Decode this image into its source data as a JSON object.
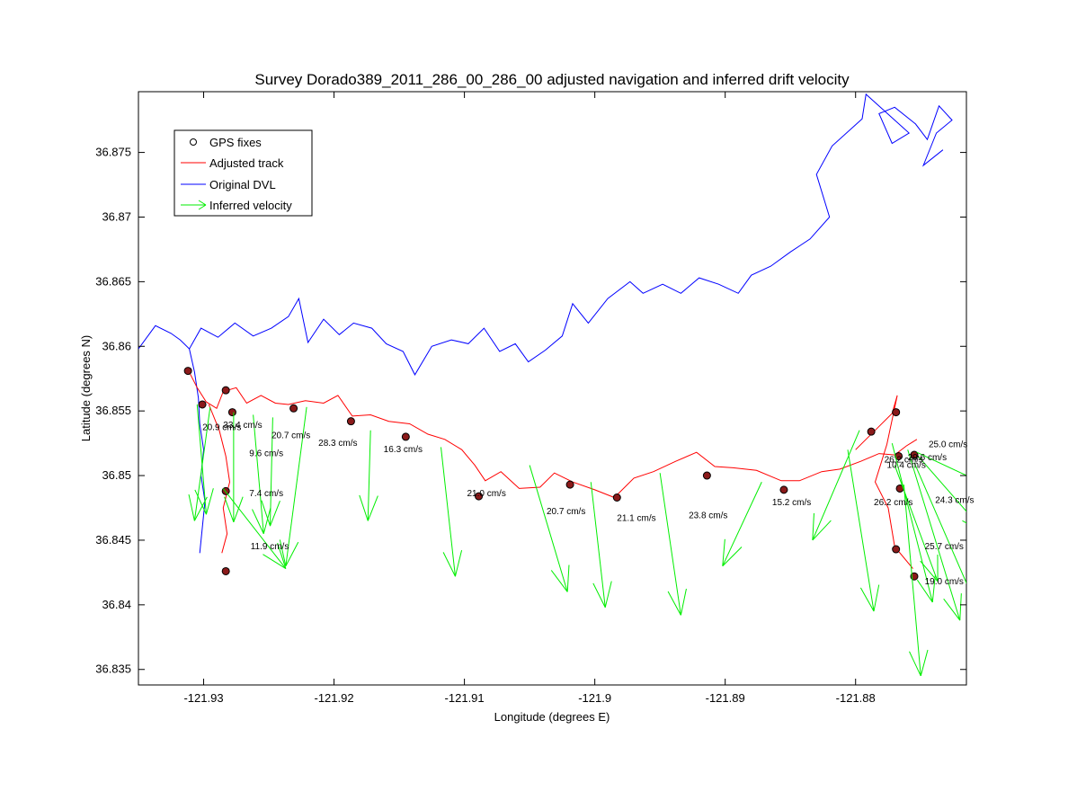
{
  "chart_data": {
    "type": "line",
    "title": "Survey Dorado389_2011_286_00_286_00 adjusted navigation and inferred drift velocity",
    "xlabel": "Longitude (degrees E)",
    "ylabel": "Latitude (degrees N)",
    "xlim": [
      -121.935,
      -121.8715
    ],
    "ylim": [
      36.8338,
      36.8797
    ],
    "xticks": [
      -121.93,
      -121.92,
      -121.91,
      -121.9,
      -121.89,
      -121.88
    ],
    "xtick_labels": [
      "-121.93",
      "-121.92",
      "-121.91",
      "-121.9",
      "-121.89",
      "-121.88"
    ],
    "yticks": [
      36.835,
      36.84,
      36.845,
      36.85,
      36.855,
      36.86,
      36.865,
      36.87,
      36.875
    ],
    "ytick_labels": [
      "36.835",
      "36.84",
      "36.845",
      "36.85",
      "36.855",
      "36.86",
      "36.865",
      "36.87",
      "36.875"
    ],
    "grid": false,
    "legend_position": "top-left",
    "legend": [
      {
        "label": "GPS fixes",
        "style": "circle",
        "color": "#000000"
      },
      {
        "label": "Adjusted track",
        "style": "line",
        "color": "#ff0000"
      },
      {
        "label": "Original DVL",
        "style": "line",
        "color": "#0000ff"
      },
      {
        "label": "Inferred velocity",
        "style": "arrow",
        "color": "#00ee00"
      }
    ],
    "series": [
      {
        "name": "Original DVL",
        "color": "#0000ff",
        "points": [
          [
            -121.935,
            36.8598
          ],
          [
            -121.9337,
            36.8616
          ],
          [
            -121.9325,
            36.861
          ],
          [
            -121.9318,
            36.8605
          ],
          [
            -121.9311,
            36.8598
          ],
          [
            -121.9302,
            36.8614
          ],
          [
            -121.9289,
            36.8607
          ],
          [
            -121.9276,
            36.8618
          ],
          [
            -121.9262,
            36.8608
          ],
          [
            -121.9248,
            36.8614
          ],
          [
            -121.9235,
            36.8623
          ],
          [
            -121.9227,
            36.8637
          ],
          [
            -121.922,
            36.8603
          ],
          [
            -121.9208,
            36.8621
          ],
          [
            -121.9196,
            36.8609
          ],
          [
            -121.9185,
            36.8618
          ],
          [
            -121.9171,
            36.8614
          ],
          [
            -121.916,
            36.8602
          ],
          [
            -121.9147,
            36.8596
          ],
          [
            -121.9138,
            36.8578
          ],
          [
            -121.9125,
            36.86
          ],
          [
            -121.911,
            36.8605
          ],
          [
            -121.9097,
            36.8602
          ],
          [
            -121.9085,
            36.8614
          ],
          [
            -121.9073,
            36.8596
          ],
          [
            -121.9061,
            36.8602
          ],
          [
            -121.9051,
            36.8588
          ],
          [
            -121.9038,
            36.8597
          ],
          [
            -121.9025,
            36.8608
          ],
          [
            -121.9017,
            36.8633
          ],
          [
            -121.9005,
            36.8618
          ],
          [
            -121.899,
            36.8637
          ],
          [
            -121.8973,
            36.865
          ],
          [
            -121.8963,
            36.8641
          ],
          [
            -121.8948,
            36.8648
          ],
          [
            -121.8934,
            36.8641
          ],
          [
            -121.892,
            36.8653
          ],
          [
            -121.8905,
            36.8648
          ],
          [
            -121.889,
            36.8641
          ],
          [
            -121.888,
            36.8655
          ],
          [
            -121.8865,
            36.8662
          ],
          [
            -121.885,
            36.8673
          ],
          [
            -121.8835,
            36.8683
          ],
          [
            -121.882,
            36.87
          ],
          [
            -121.883,
            36.8733
          ],
          [
            -121.8818,
            36.8755
          ],
          [
            -121.8795,
            36.8776
          ],
          [
            -121.8792,
            36.8795
          ],
          [
            -121.877,
            36.8775
          ],
          [
            -121.8759,
            36.8765
          ],
          [
            -121.8772,
            36.8757
          ],
          [
            -121.8782,
            36.878
          ],
          [
            -121.877,
            36.8785
          ],
          [
            -121.8754,
            36.8772
          ],
          [
            -121.8745,
            36.876
          ],
          [
            -121.8736,
            36.8786
          ],
          [
            -121.8726,
            36.8775
          ],
          [
            -121.8738,
            36.8765
          ],
          [
            -121.8748,
            36.874
          ],
          [
            -121.8733,
            36.8752
          ]
        ]
      },
      {
        "name": "Original DVL",
        "color": "#0000ff",
        "points": [
          [
            -121.9311,
            36.8598
          ],
          [
            -121.9307,
            36.858
          ],
          [
            -121.9304,
            36.856
          ],
          [
            -121.9303,
            36.854
          ],
          [
            -121.93,
            36.852
          ],
          [
            -121.9302,
            36.85
          ],
          [
            -121.9299,
            36.848
          ],
          [
            -121.9301,
            36.846
          ],
          [
            -121.9303,
            36.844
          ]
        ]
      },
      {
        "name": "Adjusted track",
        "color": "#ff0000",
        "points": [
          [
            -121.9312,
            36.8582
          ],
          [
            -121.9305,
            36.8568
          ],
          [
            -121.9298,
            36.8557
          ],
          [
            -121.929,
            36.8552
          ],
          [
            -121.9285,
            36.8565
          ],
          [
            -121.9275,
            36.8568
          ],
          [
            -121.9267,
            36.8556
          ],
          [
            -121.9256,
            36.8562
          ],
          [
            -121.9245,
            36.8556
          ],
          [
            -121.9235,
            36.8555
          ],
          [
            -121.9222,
            36.8558
          ],
          [
            -121.9208,
            36.8556
          ],
          [
            -121.9197,
            36.8562
          ],
          [
            -121.9186,
            36.8546
          ],
          [
            -121.9172,
            36.8547
          ],
          [
            -121.9158,
            36.8542
          ],
          [
            -121.9142,
            36.854
          ],
          [
            -121.9128,
            36.8532
          ],
          [
            -121.9115,
            36.8528
          ],
          [
            -121.9102,
            36.852
          ],
          [
            -121.9092,
            36.8508
          ],
          [
            -121.9084,
            36.8496
          ],
          [
            -121.9072,
            36.8503
          ],
          [
            -121.9058,
            36.849
          ],
          [
            -121.9042,
            36.8491
          ],
          [
            -121.9031,
            36.8502
          ],
          [
            -121.9017,
            36.8495
          ],
          [
            -121.9,
            36.8489
          ],
          [
            -121.8985,
            36.8483
          ],
          [
            -121.897,
            36.8498
          ],
          [
            -121.8955,
            36.8503
          ],
          [
            -121.8938,
            36.8511
          ],
          [
            -121.8922,
            36.8518
          ],
          [
            -121.8908,
            36.8507
          ],
          [
            -121.8894,
            36.8506
          ],
          [
            -121.8876,
            36.8504
          ],
          [
            -121.8857,
            36.8496
          ],
          [
            -121.8843,
            36.8496
          ],
          [
            -121.8826,
            36.8503
          ],
          [
            -121.8812,
            36.8505
          ],
          [
            -121.8796,
            36.8511
          ],
          [
            -121.8782,
            36.8517
          ],
          [
            -121.877,
            36.8516
          ],
          [
            -121.8761,
            36.8523
          ],
          [
            -121.8753,
            36.8528
          ]
        ]
      },
      {
        "name": "Adjusted track",
        "color": "#ff0000",
        "points": [
          [
            -121.9296,
            36.8555
          ],
          [
            -121.9288,
            36.8535
          ],
          [
            -121.9283,
            36.8515
          ],
          [
            -121.928,
            36.8495
          ],
          [
            -121.9285,
            36.8475
          ],
          [
            -121.9282,
            36.8455
          ],
          [
            -121.9286,
            36.844
          ]
        ]
      },
      {
        "name": "Adjusted track",
        "color": "#ff0000",
        "points": [
          [
            -121.88,
            36.852
          ],
          [
            -121.8785,
            36.8535
          ],
          [
            -121.8772,
            36.8548
          ],
          [
            -121.8768,
            36.8562
          ],
          [
            -121.8776,
            36.8524
          ],
          [
            -121.8785,
            36.8495
          ],
          [
            -121.8775,
            36.8475
          ],
          [
            -121.877,
            36.8445
          ],
          [
            -121.8756,
            36.8428
          ]
        ]
      }
    ],
    "gps_fixes": [
      [
        -121.9312,
        36.8581
      ],
      [
        -121.9301,
        36.8555
      ],
      [
        -121.9283,
        36.8566
      ],
      [
        -121.9278,
        36.8549
      ],
      [
        -121.9283,
        36.8488
      ],
      [
        -121.9283,
        36.8426
      ],
      [
        -121.9231,
        36.8552
      ],
      [
        -121.9187,
        36.8542
      ],
      [
        -121.9145,
        36.853
      ],
      [
        -121.9089,
        36.8484
      ],
      [
        -121.9019,
        36.8493
      ],
      [
        -121.8983,
        36.8483
      ],
      [
        -121.8914,
        36.85
      ],
      [
        -121.8855,
        36.8489
      ],
      [
        -121.8788,
        36.8534
      ],
      [
        -121.8769,
        36.8549
      ],
      [
        -121.8767,
        36.8515
      ],
      [
        -121.8755,
        36.8516
      ],
      [
        -121.8766,
        36.849
      ],
      [
        -121.8769,
        36.8443
      ],
      [
        -121.8755,
        36.8422
      ]
    ],
    "velocity_arrows": [
      {
        "x": -121.9305,
        "y": 36.8555,
        "dx": 0.0007,
        "dy": -0.0085,
        "label": ""
      },
      {
        "x": -121.9295,
        "y": 36.8553,
        "dx": -0.0012,
        "dy": -0.0088,
        "label": ""
      },
      {
        "x": -121.9277,
        "y": 36.8549,
        "dx": 0.0,
        "dy": -0.0085,
        "label": ""
      },
      {
        "x": -121.9262,
        "y": 36.8547,
        "dx": 0.0008,
        "dy": -0.0092,
        "label": ""
      },
      {
        "x": -121.9247,
        "y": 36.8545,
        "dx": -0.0002,
        "dy": -0.0084,
        "label": ""
      },
      {
        "x": -121.9285,
        "y": 36.849,
        "dx": 0.0048,
        "dy": -0.0062,
        "label": ""
      },
      {
        "x": -121.9221,
        "y": 36.8553,
        "dx": -0.0016,
        "dy": -0.0123,
        "label": ""
      },
      {
        "x": -121.9172,
        "y": 36.8535,
        "dx": -0.0002,
        "dy": -0.007,
        "label": ""
      },
      {
        "x": -121.9118,
        "y": 36.8522,
        "dx": 0.0011,
        "dy": -0.01,
        "label": ""
      },
      {
        "x": -121.905,
        "y": 36.8508,
        "dx": 0.0029,
        "dy": -0.0098,
        "label": ""
      },
      {
        "x": -121.9003,
        "y": 36.8495,
        "dx": 0.0011,
        "dy": -0.0097,
        "label": ""
      },
      {
        "x": -121.895,
        "y": 36.8502,
        "dx": 0.0016,
        "dy": -0.011,
        "label": ""
      },
      {
        "x": -121.8872,
        "y": 36.8495,
        "dx": -0.003,
        "dy": -0.0065,
        "label": ""
      },
      {
        "x": -121.8806,
        "y": 36.852,
        "dx": 0.002,
        "dy": -0.0125,
        "label": ""
      },
      {
        "x": -121.8797,
        "y": 36.8535,
        "dx": -0.0036,
        "dy": -0.0085,
        "label": ""
      },
      {
        "x": -121.876,
        "y": 36.852,
        "dx": 0.004,
        "dy": -0.0132,
        "label": ""
      },
      {
        "x": -121.877,
        "y": 36.8508,
        "dx": 0.0033,
        "dy": -0.009,
        "label": ""
      },
      {
        "x": -121.8752,
        "y": 36.8515,
        "dx": 0.0052,
        "dy": -0.006,
        "label": ""
      },
      {
        "x": -121.8763,
        "y": 36.8493,
        "dx": 0.0013,
        "dy": -0.0148,
        "label": ""
      },
      {
        "x": -121.8755,
        "y": 36.851,
        "dx": 0.0055,
        "dy": -0.0128,
        "label": ""
      },
      {
        "x": -121.8772,
        "y": 36.8525,
        "dx": 0.0031,
        "dy": -0.0123,
        "label": ""
      },
      {
        "x": -121.8753,
        "y": 36.8518,
        "dx": 0.0108,
        "dy": -0.0051,
        "label": ""
      }
    ],
    "velocity_labels": [
      {
        "text": "20.9 cm/s",
        "x": -121.9301,
        "y": 36.8535
      },
      {
        "text": "33.4 cm/s",
        "x": -121.9285,
        "y": 36.8537
      },
      {
        "text": "20.7 cm/s",
        "x": -121.9248,
        "y": 36.8529
      },
      {
        "text": "9.6 cm/s",
        "x": -121.9265,
        "y": 36.8515
      },
      {
        "text": "7.4 cm/s",
        "x": -121.9265,
        "y": 36.8484
      },
      {
        "text": "11.9 cm/s",
        "x": -121.9264,
        "y": 36.8443
      },
      {
        "text": "28.3 cm/s",
        "x": -121.9212,
        "y": 36.8523
      },
      {
        "text": "16.3 cm/s",
        "x": -121.9162,
        "y": 36.8518
      },
      {
        "text": "21.0 cm/s",
        "x": -121.9098,
        "y": 36.8484
      },
      {
        "text": "20.7 cm/s",
        "x": -121.9037,
        "y": 36.847
      },
      {
        "text": "21.1 cm/s",
        "x": -121.8983,
        "y": 36.8465
      },
      {
        "text": "23.8 cm/s",
        "x": -121.8928,
        "y": 36.8467
      },
      {
        "text": "15.2 cm/s",
        "x": -121.8864,
        "y": 36.8477
      },
      {
        "text": "26.2 cm/s",
        "x": -121.8786,
        "y": 36.8477
      },
      {
        "text": "25.0 cm/s",
        "x": -121.8744,
        "y": 36.8522
      },
      {
        "text": "26.2 cm/s",
        "x": -121.8778,
        "y": 36.851
      },
      {
        "text": "29.6 cm/s",
        "x": -121.876,
        "y": 36.8512
      },
      {
        "text": "10.4 cm/s",
        "x": -121.8776,
        "y": 36.8506
      },
      {
        "text": "24.3 cm/s",
        "x": -121.8739,
        "y": 36.8479
      },
      {
        "text": "25.7 cm/s",
        "x": -121.8747,
        "y": 36.8443
      },
      {
        "text": "19.0 cm/s",
        "x": -121.8747,
        "y": 36.8416
      }
    ]
  }
}
